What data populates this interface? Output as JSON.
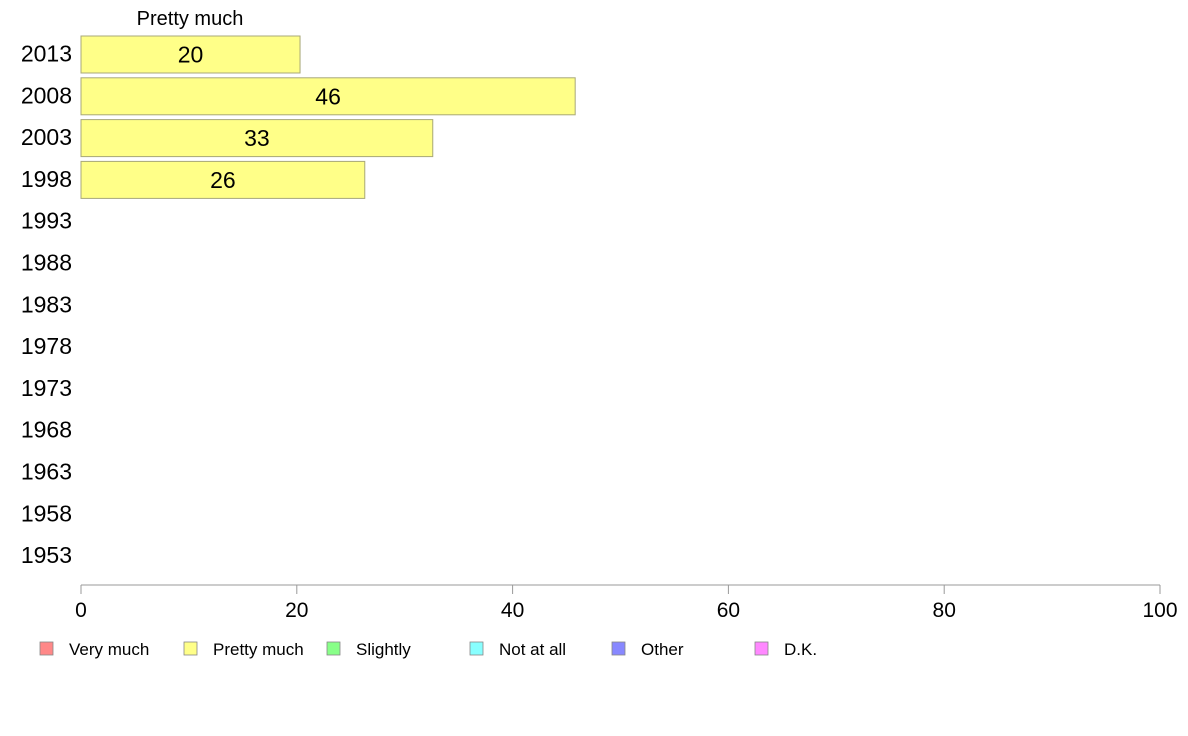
{
  "chart_data": {
    "type": "bar",
    "orientation": "horizontal",
    "title": "Pretty much",
    "categories": [
      "2013",
      "2008",
      "2003",
      "1998",
      "1993",
      "1988",
      "1983",
      "1978",
      "1973",
      "1968",
      "1963",
      "1958",
      "1953"
    ],
    "series": [
      {
        "name": "Pretty much",
        "color": "#ffff88",
        "values": [
          20.3,
          45.8,
          32.6,
          26.3,
          null,
          null,
          null,
          null,
          null,
          null,
          null,
          null,
          null
        ],
        "labels": [
          "20",
          "46",
          "33",
          "26",
          "",
          "",
          "",
          "",
          "",
          "",
          "",
          "",
          ""
        ]
      }
    ],
    "xlim": [
      0,
      100
    ],
    "xticks": [
      "0",
      "20",
      "40",
      "60",
      "80",
      "100"
    ],
    "grid": false,
    "legend": {
      "placement": "bottom",
      "entries": [
        {
          "label": "Very much",
          "color": "#ff8888"
        },
        {
          "label": "Pretty much",
          "color": "#ffff88"
        },
        {
          "label": "Slightly",
          "color": "#88ff88"
        },
        {
          "label": "Not at all",
          "color": "#88ffff"
        },
        {
          "label": "Other",
          "color": "#8888ff"
        },
        {
          "label": "D.K.",
          "color": "#ff88ff"
        }
      ]
    }
  }
}
